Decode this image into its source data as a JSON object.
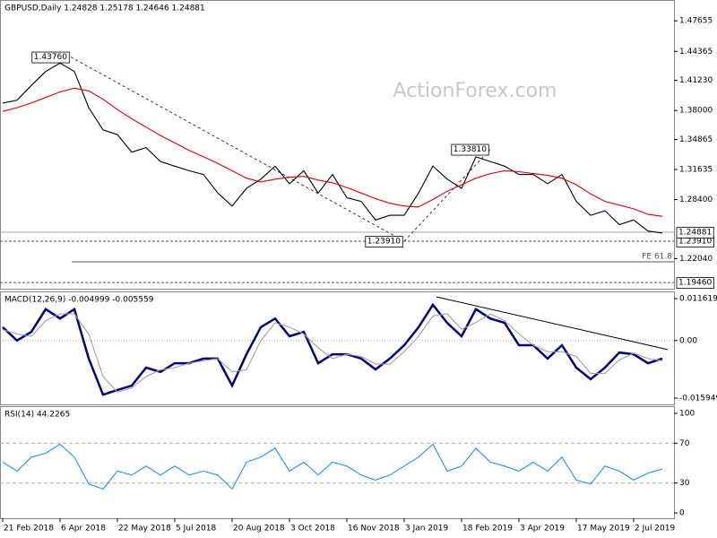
{
  "chart_data": [
    {
      "type": "line",
      "title": "GBPUSD,Daily 1.24828 1.25178 1.24646 1.24881",
      "watermark": "ActionForex.com",
      "x": [
        0,
        8,
        16,
        24,
        32,
        40,
        48,
        56,
        64,
        72,
        80,
        88,
        96,
        104,
        112,
        120,
        128,
        136,
        144,
        152,
        160,
        168,
        176,
        184,
        192,
        200,
        208,
        216,
        224,
        232,
        240,
        248,
        256,
        264,
        272,
        280,
        288,
        296,
        304,
        312,
        320,
        328,
        336,
        344,
        352,
        360,
        368
      ],
      "series": [
        {
          "color": "#000000",
          "values": [
            1.388,
            1.391,
            1.407,
            1.422,
            1.431,
            1.422,
            1.383,
            1.359,
            1.354,
            1.335,
            1.34,
            1.325,
            1.32,
            1.315,
            1.311,
            1.291,
            1.277,
            1.296,
            1.306,
            1.32,
            1.301,
            1.315,
            1.291,
            1.311,
            1.286,
            1.282,
            1.262,
            1.267,
            1.267,
            1.291,
            1.32,
            1.306,
            1.296,
            1.33,
            1.325,
            1.32,
            1.311,
            1.311,
            1.301,
            1.311,
            1.282,
            1.267,
            1.272,
            1.257,
            1.262,
            1.25,
            1.248
          ]
        },
        {
          "color": "#e00000",
          "values": [
            1.379,
            1.383,
            1.388,
            1.394,
            1.4,
            1.404,
            1.401,
            1.392,
            1.381,
            1.371,
            1.362,
            1.353,
            1.345,
            1.337,
            1.33,
            1.323,
            1.315,
            1.307,
            1.303,
            1.306,
            1.308,
            1.309,
            1.305,
            1.302,
            1.297,
            1.291,
            1.285,
            1.28,
            1.277,
            1.276,
            1.284,
            1.293,
            1.3,
            1.307,
            1.312,
            1.315,
            1.314,
            1.312,
            1.31,
            1.307,
            1.3,
            1.29,
            1.282,
            1.278,
            1.274,
            1.268,
            1.266
          ]
        }
      ],
      "ylim": [
        1.1879,
        1.499
      ],
      "yticks": [
        1.47655,
        1.44365,
        {
          "value": 1.4123,
          "label": "1.41230"
        },
        {
          "value": 1.38,
          "label": "1.38000"
        },
        1.34865,
        1.31635,
        {
          "value": 1.284,
          "label": "1.28400"
        },
        {
          "value": 1.2204,
          "label": "1.22040"
        }
      ],
      "annotations": [
        {
          "x": 38,
          "value": 1.4376,
          "label": "1.43760"
        },
        {
          "x": 224,
          "value": 1.2391,
          "label": "1.23910"
        },
        {
          "x": 272,
          "value": 1.3381,
          "label": "1.33810"
        }
      ],
      "levels": [
        {
          "value": 1.2391,
          "label": "1.23910",
          "style": "dashed"
        },
        {
          "value": 1.1946,
          "label": "1.19460",
          "style": "dashed"
        },
        {
          "value": 1.2169,
          "label": "FE 61.8",
          "style": "solid"
        }
      ],
      "last": 1.24881
    },
    {
      "type": "line",
      "title": "MACD(12,26,9) -0.004999 -0.005559",
      "x": [
        0,
        8,
        16,
        24,
        32,
        40,
        48,
        56,
        64,
        72,
        80,
        88,
        96,
        104,
        112,
        120,
        128,
        136,
        144,
        152,
        160,
        168,
        176,
        184,
        192,
        200,
        208,
        216,
        224,
        232,
        240,
        248,
        256,
        264,
        272,
        280,
        288,
        296,
        304,
        312,
        320,
        328,
        336,
        344,
        352,
        360,
        368
      ],
      "series": [
        {
          "color": "#000080",
          "values": [
            0.0037,
            0,
            0.0024,
            0.0087,
            0.0061,
            0.0087,
            -0.005,
            -0.015,
            -0.0137,
            -0.0125,
            -0.0075,
            -0.0087,
            -0.0063,
            -0.0063,
            -0.005,
            -0.005,
            -0.0125,
            -0.0038,
            0.0037,
            0.0061,
            0.0012,
            0.0024,
            -0.0063,
            -0.0038,
            -0.0038,
            -0.005,
            -0.008,
            -0.005,
            -0.0013,
            0.0037,
            0.0099,
            0.0049,
            0.0012,
            0.0087,
            0.0061,
            0.0049,
            -0.0013,
            -0.0013,
            -0.005,
            -0.0013,
            -0.0075,
            -0.0107,
            -0.0075,
            -0.0033,
            -0.0038,
            -0.0063,
            -0.005
          ]
        },
        {
          "color": "#a0a0a0",
          "values": [
            0.003,
            0.0018,
            0.0012,
            0.0055,
            0.0074,
            0.0074,
            0.0018,
            -0.01,
            -0.0143,
            -0.0131,
            -0.01,
            -0.0081,
            -0.0075,
            -0.0063,
            -0.0056,
            -0.005,
            -0.0087,
            -0.0081,
            0,
            0.0049,
            0.0037,
            0.0018,
            -0.002,
            -0.005,
            -0.0038,
            -0.0044,
            -0.0065,
            -0.0065,
            -0.0031,
            0.0012,
            0.0068,
            0.0074,
            0.0031,
            0.005,
            0.0074,
            0.0055,
            0.0018,
            -0.0013,
            -0.0031,
            -0.0031,
            -0.0044,
            -0.0091,
            -0.0091,
            -0.0054,
            -0.0035,
            -0.005,
            -0.0056
          ]
        }
      ],
      "ylim": [
        -0.01769,
        0.01361
      ],
      "yticks": [
        0.011619,
        {
          "value": 0,
          "label": "0.00"
        },
        -0.015949
      ],
      "levels": [
        0
      ],
      "trendline": {
        "x": [
          242,
          371
        ],
        "values": [
          0.0121,
          -0.0025
        ]
      }
    },
    {
      "type": "line",
      "title": "RSI(14) 44.2265",
      "x": [
        0,
        8,
        16,
        24,
        32,
        40,
        48,
        56,
        64,
        72,
        80,
        88,
        96,
        104,
        112,
        120,
        128,
        136,
        144,
        152,
        160,
        168,
        176,
        184,
        192,
        200,
        208,
        216,
        224,
        232,
        240,
        248,
        256,
        264,
        272,
        280,
        288,
        296,
        304,
        312,
        320,
        328,
        336,
        344,
        352,
        360,
        368
      ],
      "series": [
        {
          "color": "#1e90ff",
          "values": [
            51,
            42,
            56,
            60,
            69,
            56,
            29,
            24,
            42,
            38,
            47,
            38,
            47,
            38,
            42,
            38,
            24,
            51,
            56,
            65,
            42,
            51,
            38,
            51,
            47,
            38,
            33,
            38,
            47,
            56,
            69,
            42,
            47,
            65,
            51,
            47,
            42,
            51,
            42,
            56,
            33,
            29,
            47,
            42,
            33,
            40,
            44
          ]
        }
      ],
      "ylim": [
        -5.4,
        107.2
      ],
      "yticks": [
        100,
        70,
        30,
        0
      ],
      "levels": [
        70,
        30
      ],
      "xlim": [
        -1.5,
        374.5
      ],
      "xticks": [
        {
          "value": 0,
          "label": "21 Feb 2018"
        },
        {
          "value": 32,
          "label": "6 Apr 2018"
        },
        {
          "value": 64,
          "label": "22 May 2018"
        },
        {
          "value": 96,
          "label": "5 Jul 2018"
        },
        {
          "value": 128,
          "label": "20 Aug 2018"
        },
        {
          "value": 160,
          "label": "3 Oct 2018"
        },
        {
          "value": 192,
          "label": "16 Nov 2018"
        },
        {
          "value": 224,
          "label": "3 Jan 2019"
        },
        {
          "value": 256,
          "label": "18 Feb 2019"
        },
        {
          "value": 288,
          "label": "3 Apr 2019"
        },
        {
          "value": 320,
          "label": "17 May 2019"
        },
        {
          "value": 352,
          "label": "2 Jul 2019"
        }
      ]
    }
  ]
}
